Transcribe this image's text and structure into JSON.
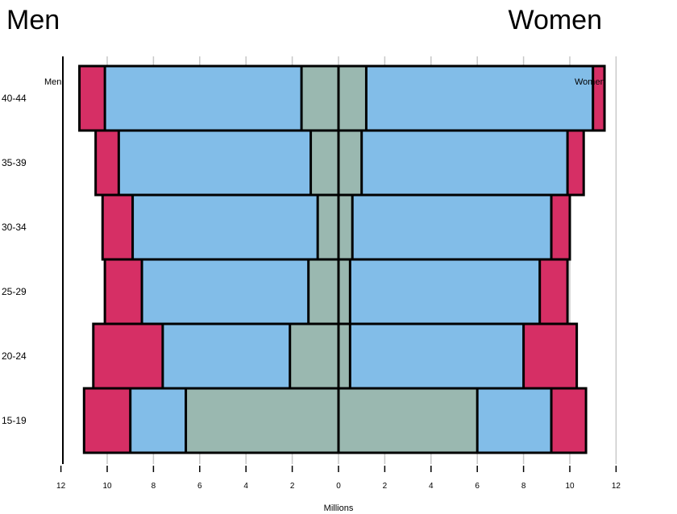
{
  "chart_data": {
    "type": "bar",
    "orientation": "horizontal",
    "layout": "population-pyramid",
    "left_title": "Men",
    "right_title": "Women",
    "left_inner_label": "Men",
    "right_inner_label": "Women",
    "xlabel": "Millions",
    "xlim": [
      -12,
      12
    ],
    "x_ticks": [
      -12,
      -10,
      -8,
      -6,
      -4,
      -2,
      0,
      2,
      4,
      6,
      8,
      10,
      12
    ],
    "x_tick_labels": [
      "12",
      "10",
      "8",
      "6",
      "4",
      "2",
      "0",
      "2",
      "4",
      "6",
      "8",
      "10",
      "12"
    ],
    "grid": "vertical",
    "categories": [
      "15-19",
      "20-24",
      "25-29",
      "30-34",
      "35-39",
      "40-44"
    ],
    "series": [
      {
        "color": "#9ab8b0",
        "men": [
          6.6,
          2.1,
          1.3,
          0.9,
          1.2,
          1.6
        ],
        "women": [
          6.0,
          0.5,
          0.5,
          0.6,
          1.0,
          1.2
        ]
      },
      {
        "color": "#82bde8",
        "men": [
          9.0,
          7.6,
          8.5,
          8.9,
          9.5,
          10.1
        ],
        "women": [
          9.2,
          8.0,
          8.7,
          9.2,
          9.9,
          11.0
        ]
      },
      {
        "color": "#d62f65",
        "men": [
          11.0,
          10.6,
          10.1,
          10.2,
          10.5,
          11.2
        ],
        "women": [
          10.7,
          10.3,
          9.9,
          10.0,
          10.6,
          11.5
        ]
      }
    ]
  }
}
